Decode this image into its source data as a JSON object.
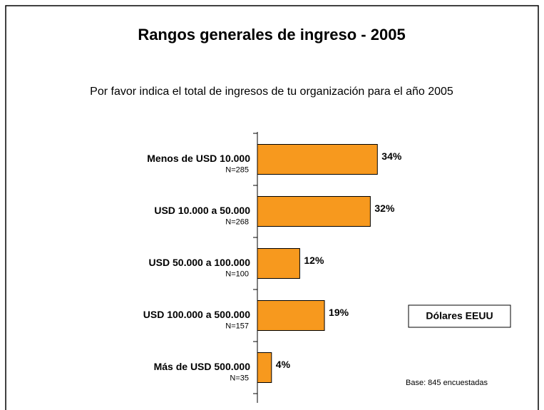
{
  "chart_data": {
    "type": "bar",
    "orientation": "horizontal",
    "title": "Rangos generales de ingreso - 2005",
    "subtitle": "Por favor indica el total de ingresos de tu organización para el año 2005",
    "categories": [
      "Menos de USD 10.000",
      "USD 10.000 a 50.000",
      "USD 50.000 a 100.000",
      "USD 100.000 a 500.000",
      "Más de USD 500.000"
    ],
    "category_notes": [
      "N=285",
      "N=268",
      "N=100",
      "N=157",
      "N=35"
    ],
    "values": [
      34,
      32,
      12,
      19,
      4
    ],
    "value_labels": [
      "34%",
      "32%",
      "12%",
      "19%",
      "4%"
    ],
    "color": "#f7991e",
    "annotations": [
      "Dólares EEUU",
      "Base: 845 encuestadas"
    ]
  }
}
